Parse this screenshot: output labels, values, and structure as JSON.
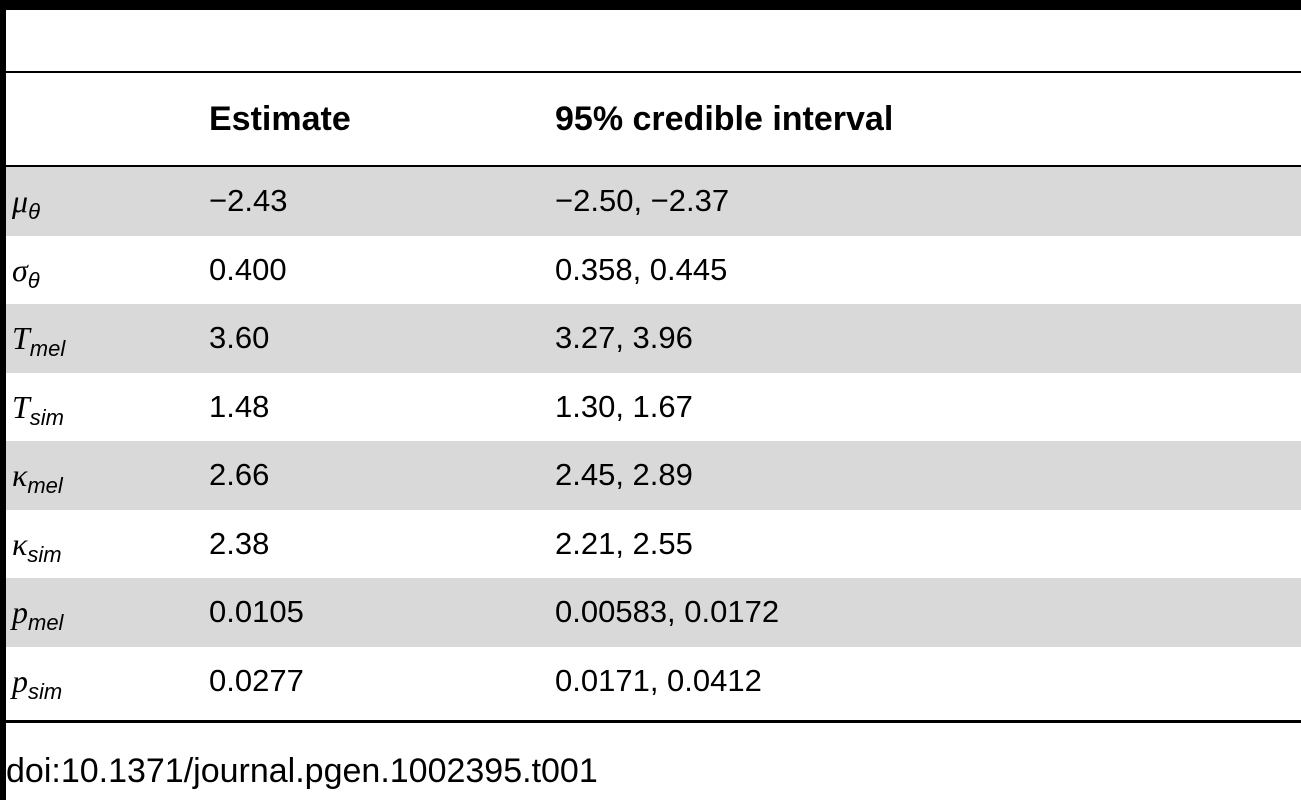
{
  "table": {
    "headers": {
      "estimate": "Estimate",
      "interval": "95% credible interval"
    },
    "rows": [
      {
        "symbol": "μ",
        "sub": "θ",
        "estimate": "−2.43",
        "interval": "−2.50, −2.37"
      },
      {
        "symbol": "σ",
        "sub": "θ",
        "estimate": "0.400",
        "interval": "0.358, 0.445"
      },
      {
        "symbol": "T",
        "sub": "mel",
        "estimate": "3.60",
        "interval": "3.27, 3.96"
      },
      {
        "symbol": "T",
        "sub": "sim",
        "estimate": "1.48",
        "interval": "1.30, 1.67"
      },
      {
        "symbol": "κ",
        "sub": "mel",
        "estimate": "2.66",
        "interval": "2.45, 2.89"
      },
      {
        "symbol": "κ",
        "sub": "sim",
        "estimate": "2.38",
        "interval": "2.21, 2.55"
      },
      {
        "symbol": "p",
        "sub": "mel",
        "estimate": "0.0105",
        "interval": "0.00583, 0.0172"
      },
      {
        "symbol": "p",
        "sub": "sim",
        "estimate": "0.0277",
        "interval": "0.0171, 0.0412"
      }
    ]
  },
  "doi": "doi:10.1371/journal.pgen.1002395.t001"
}
